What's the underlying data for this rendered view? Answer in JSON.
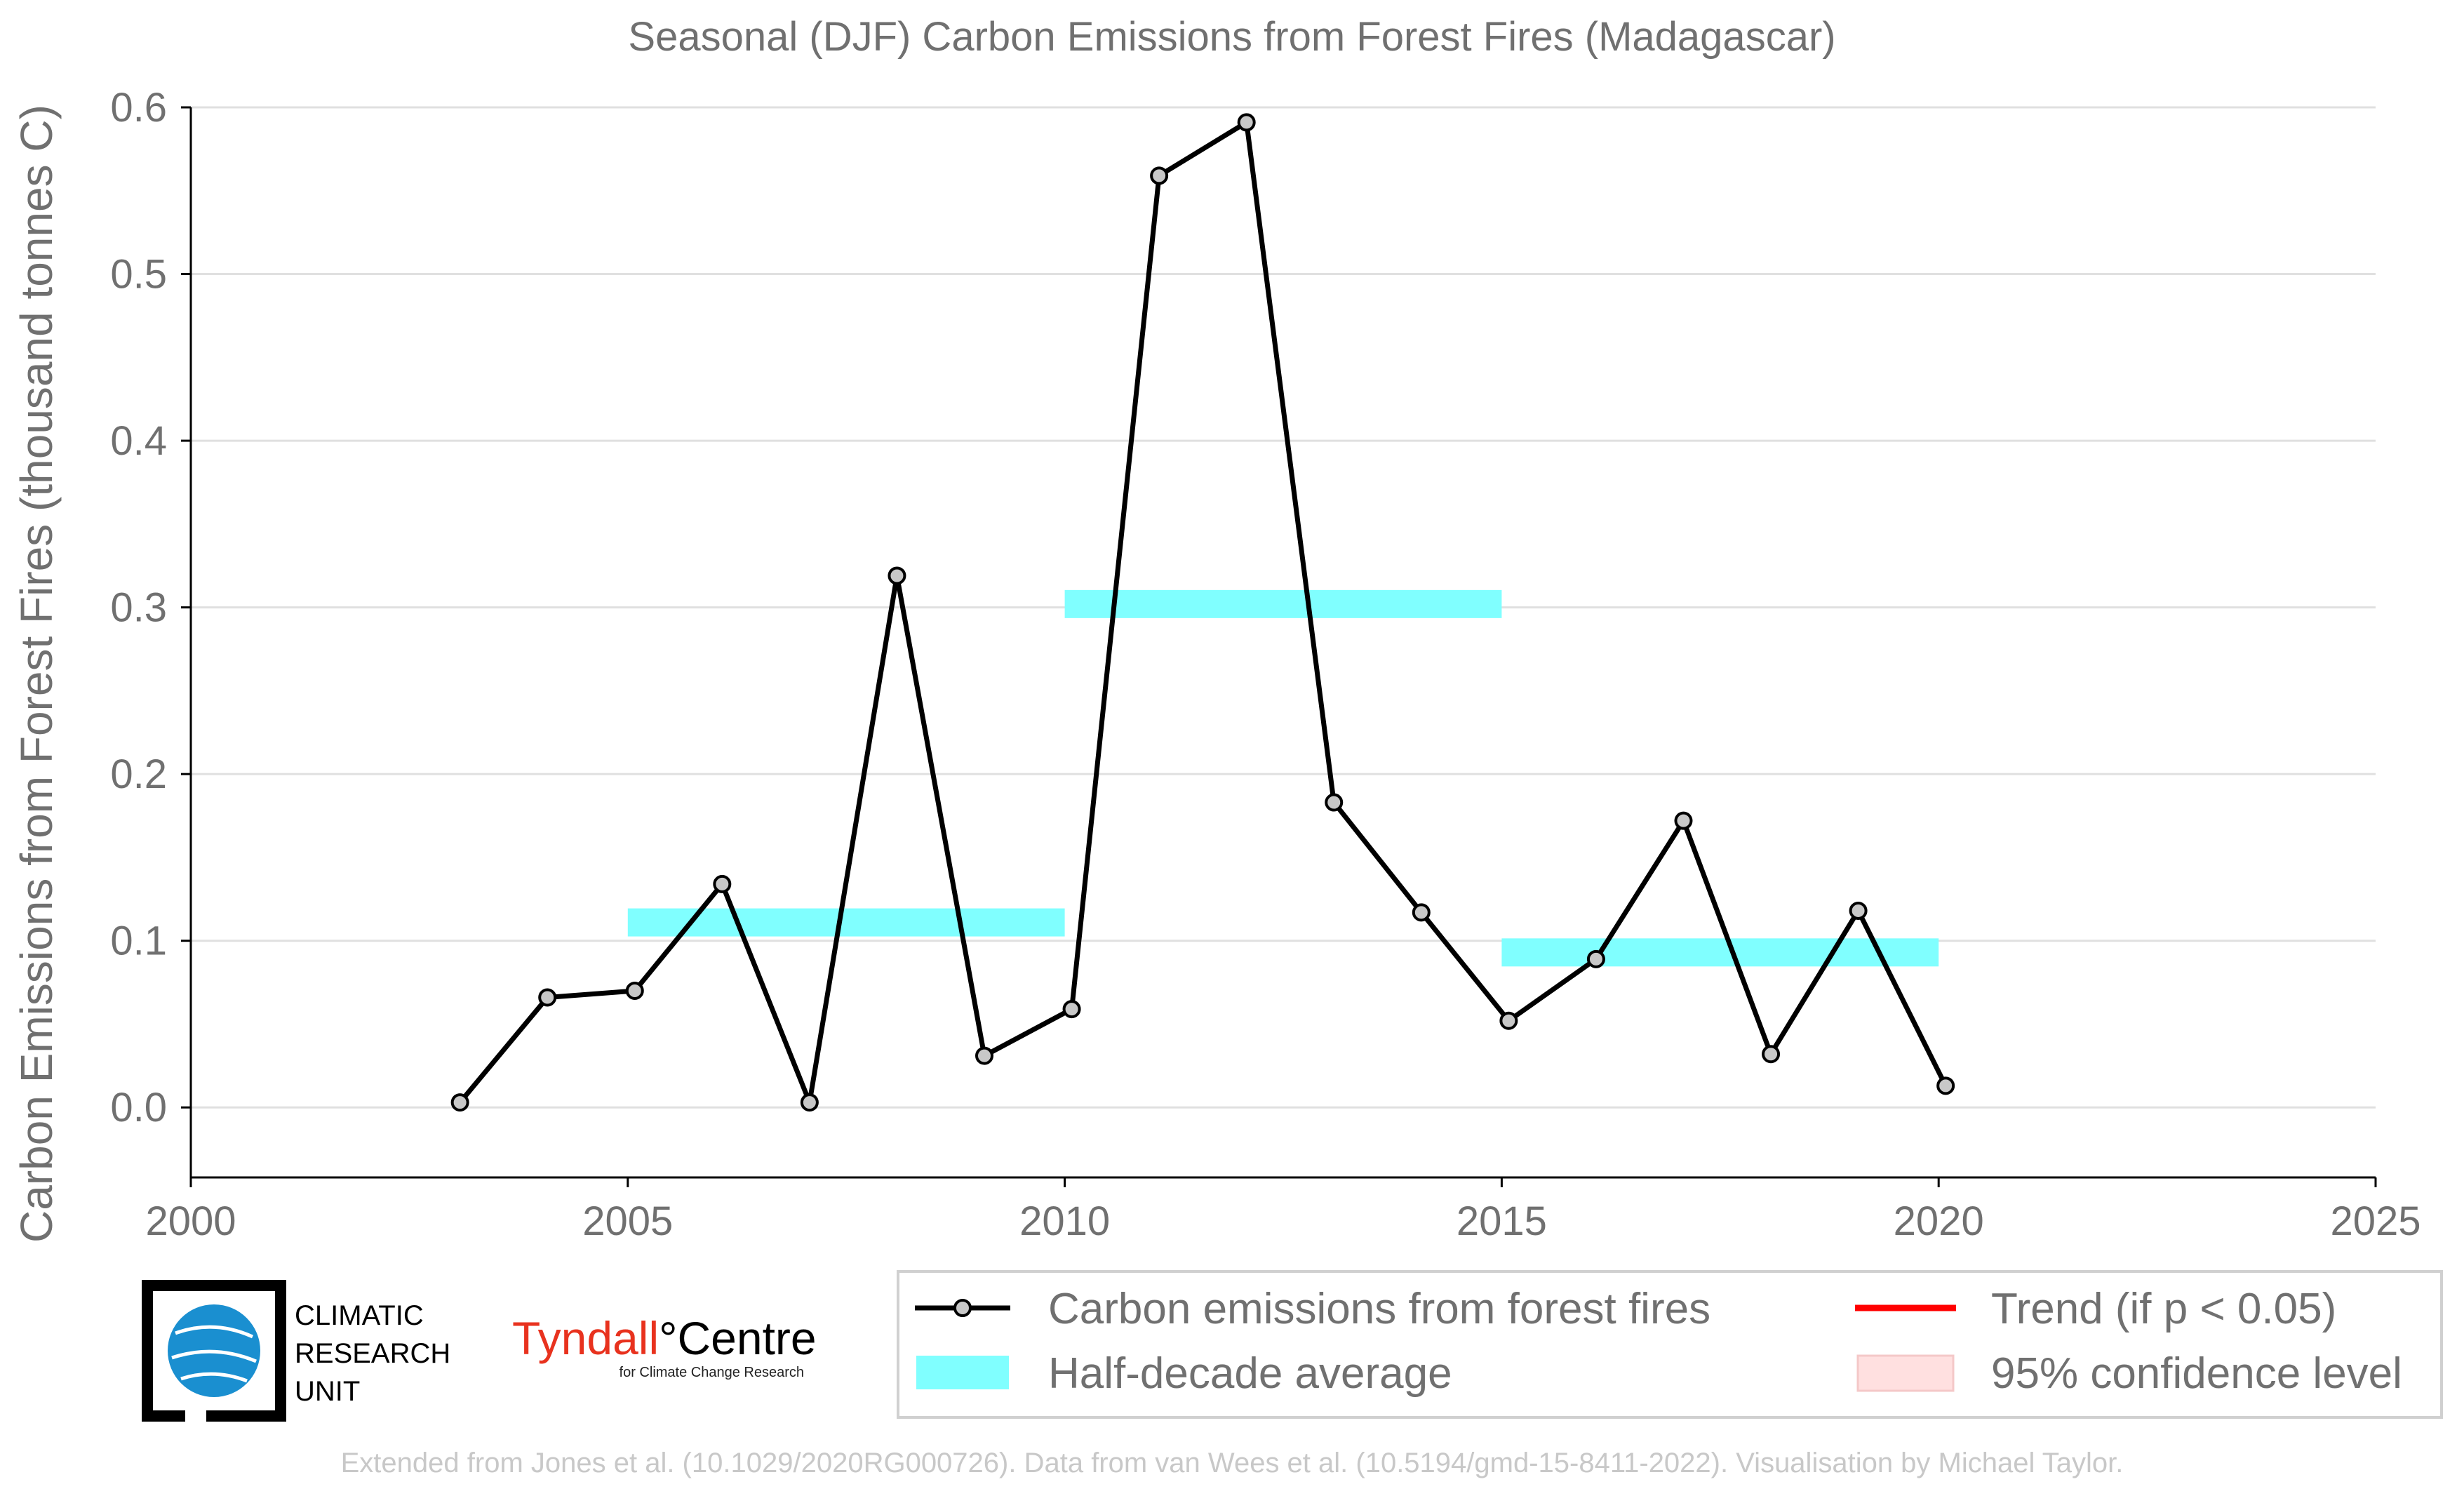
{
  "title": "Seasonal (DJF) Carbon Emissions from Forest Fires (Madagascar)",
  "ylabel": "Carbon Emissions from Forest Fires (thousand tonnes C)",
  "footer": "Extended from Jones et al. (10.1029/2020RG000726). Data from van Wees et al. (10.5194/gmd-15-8411-2022). Visualisation by Michael Taylor.",
  "logos": {
    "cru_lines": [
      "CLIMATIC",
      "RESEARCH",
      "UNIT"
    ],
    "tyndall_red": "Tyndall",
    "tyndall_black": "°Centre",
    "tyndall_sub": "for Climate Change Research"
  },
  "legend": {
    "series": "Carbon emissions from forest fires",
    "average": "Half-decade average",
    "trend": "Trend (if p < 0.05)",
    "confidence": "95% confidence level"
  },
  "colors": {
    "line": "#000000",
    "marker_fill": "#c8c8c8",
    "average": "#80ffff",
    "trend": "#ff0000",
    "confidence": "#ffe0e0",
    "text": "#707070",
    "grid": "#e0e0e0"
  },
  "chart_data": {
    "type": "line",
    "title": "Seasonal (DJF) Carbon Emissions from Forest Fires (Madagascar)",
    "ylabel": "Carbon Emissions from Forest Fires (thousand tonnes C)",
    "xlim": [
      2000,
      2025
    ],
    "ylim": [
      -0.042,
      0.6
    ],
    "xticks": [
      "2000",
      "2005",
      "2010",
      "2015",
      "2020",
      "2025"
    ],
    "yticks": [
      "0.0",
      "0.1",
      "0.2",
      "0.3",
      "0.4",
      "0.5",
      "0.6"
    ],
    "grid": "horizontal",
    "legend_position": "bottom-right",
    "series": [
      {
        "name": "Carbon emissions from forest fires",
        "x": [
          2003,
          2004,
          2005,
          2006,
          2007,
          2008,
          2009,
          2010,
          2011,
          2012,
          2013,
          2014,
          2015,
          2016,
          2017,
          2018,
          2019,
          2020
        ],
        "values": [
          0.003,
          0.066,
          0.07,
          0.134,
          0.003,
          0.319,
          0.031,
          0.059,
          0.559,
          0.591,
          0.183,
          0.117,
          0.052,
          0.089,
          0.172,
          0.032,
          0.118,
          0.013
        ]
      }
    ],
    "half_decade_averages": [
      {
        "start": 2005,
        "end": 2010,
        "value": 0.111
      },
      {
        "start": 2010,
        "end": 2015,
        "value": 0.302
      },
      {
        "start": 2015,
        "end": 2020,
        "value": 0.093
      }
    ]
  }
}
